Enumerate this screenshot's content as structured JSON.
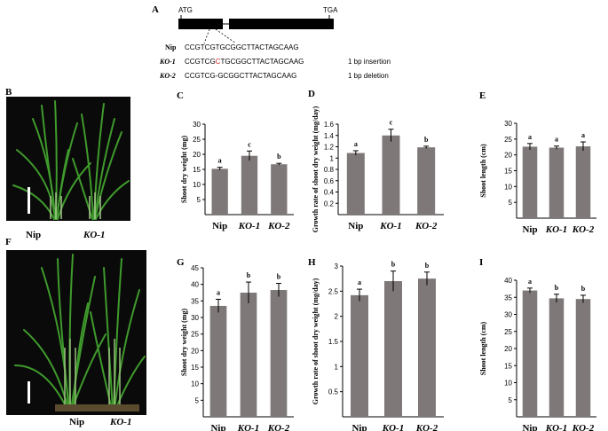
{
  "panel_letters": {
    "A": "A",
    "B": "B",
    "C": "C",
    "D": "D",
    "E": "E",
    "F": "F",
    "G": "G",
    "H": "H",
    "I": "I"
  },
  "gene": {
    "start_codon": "ATG",
    "stop_codon": "TGA",
    "rows": [
      {
        "label": "Nip",
        "pre": "CCGTCGTGCGGCTTACTAGCAAG",
        "mut": "",
        "post": "",
        "note": ""
      },
      {
        "label": "KO-1",
        "pre": "CCGTCG",
        "mut": "C",
        "post": "TGCGGCTTACTAGCAAG",
        "note": "1 bp insertion"
      },
      {
        "label": "KO-2",
        "pre": "CCGTCG",
        "mut": "",
        "post": "-GCGGCTTACTAGCAAG",
        "note": "1 bp deletion"
      }
    ]
  },
  "photos": {
    "B_labels": [
      "Nip",
      "KO-1"
    ],
    "F_labels": [
      "Nip",
      "KO-1"
    ]
  },
  "colors": {
    "bar": "#7f7879",
    "axis": "#000000",
    "photo_bg": "#0a0a0a",
    "leaf": "#3f9a2c",
    "mutation": "#d42a2a"
  },
  "chart_data": [
    {
      "panel": "C",
      "type": "bar",
      "ylabel": "Shoot dry weight (mg)",
      "categories": [
        "Nip",
        "KO-1",
        "KO-2"
      ],
      "ylim": [
        0,
        30
      ],
      "yticks": [
        5,
        10,
        15,
        20,
        25,
        30
      ],
      "values": [
        15.2,
        19.5,
        16.7
      ],
      "errors": [
        0.5,
        1.6,
        0.3
      ],
      "letters": [
        "a",
        "c",
        "b"
      ]
    },
    {
      "panel": "D",
      "type": "bar",
      "ylabel": "Growth rate of shoot dry weight (mg/day)",
      "categories": [
        "Nip",
        "KO-1",
        "KO-2"
      ],
      "ylim": [
        0,
        1.6
      ],
      "yticks": [
        0.2,
        0.4,
        0.6,
        0.8,
        1.0,
        1.2,
        1.4,
        1.6
      ],
      "values": [
        1.09,
        1.4,
        1.19
      ],
      "errors": [
        0.04,
        0.11,
        0.02
      ],
      "letters": [
        "a",
        "c",
        "b"
      ]
    },
    {
      "panel": "E",
      "type": "bar",
      "ylabel": "Shoot length (cm)",
      "categories": [
        "Nip",
        "KO-1",
        "KO-2"
      ],
      "ylim": [
        0,
        30
      ],
      "yticks": [
        5,
        10,
        15,
        20,
        25,
        30
      ],
      "values": [
        22.6,
        22.3,
        22.7
      ],
      "errors": [
        1.0,
        0.5,
        1.4
      ],
      "letters": [
        "a",
        "a",
        "a"
      ]
    },
    {
      "panel": "G",
      "type": "bar",
      "ylabel": "Shoot dry weight (mg)",
      "categories": [
        "Nip",
        "KO-1",
        "KO-2"
      ],
      "ylim": [
        0,
        45
      ],
      "yticks": [
        5,
        10,
        15,
        20,
        25,
        30,
        35,
        40,
        45
      ],
      "values": [
        33.5,
        37.5,
        38.3
      ],
      "errors": [
        2.0,
        3.2,
        2.0
      ],
      "letters": [
        "a",
        "b",
        "b"
      ]
    },
    {
      "panel": "H",
      "type": "bar",
      "ylabel": "Growth rate of shoot dry weight (mg/day)",
      "categories": [
        "Nip",
        "KO-1",
        "KO-2"
      ],
      "ylim": [
        0,
        3.0
      ],
      "yticks": [
        0.5,
        1.0,
        1.5,
        2.0,
        2.5,
        3.0
      ],
      "values": [
        2.42,
        2.7,
        2.75
      ],
      "errors": [
        0.12,
        0.2,
        0.13
      ],
      "letters": [
        "a",
        "b",
        "b"
      ]
    },
    {
      "panel": "I",
      "type": "bar",
      "ylabel": "Shoot length (cm)",
      "categories": [
        "Nip",
        "KO-1",
        "KO-2"
      ],
      "ylim": [
        0,
        40
      ],
      "yticks": [
        5,
        10,
        15,
        20,
        25,
        30,
        35,
        40
      ],
      "values": [
        37.0,
        34.7,
        34.5
      ],
      "errors": [
        0.7,
        1.2,
        1.1
      ],
      "letters": [
        "a",
        "b",
        "b"
      ]
    }
  ]
}
